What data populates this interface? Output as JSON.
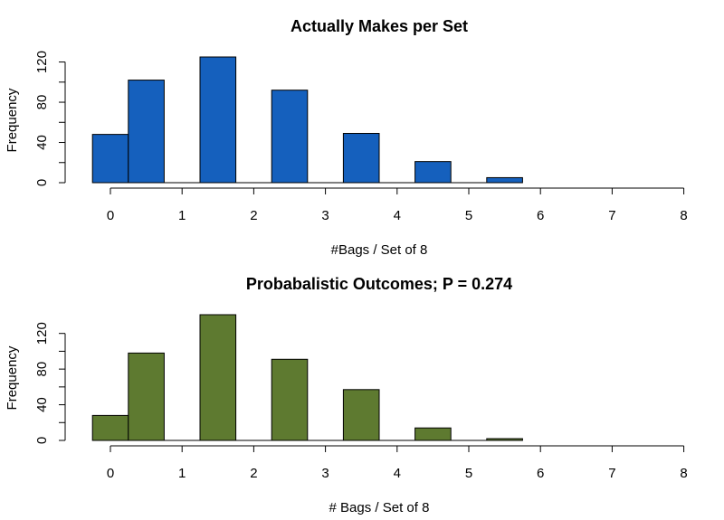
{
  "chart_data": [
    {
      "type": "bar",
      "title": "Actually Makes per Set",
      "xlabel": "#Bags / Set of 8",
      "ylabel": "Frequency",
      "bar_color": "#1560BD",
      "bar_lefts": [
        -0.25,
        0.25,
        1.25,
        2.25,
        3.25,
        4.25,
        5.25
      ],
      "bar_rights": [
        0.25,
        0.75,
        1.75,
        2.75,
        3.75,
        4.75,
        5.75
      ],
      "values": [
        48,
        102,
        125,
        92,
        49,
        21,
        5
      ],
      "xticks": [
        0,
        1,
        2,
        3,
        4,
        5,
        6,
        7,
        8
      ],
      "xlim": [
        -0.25,
        8
      ],
      "yticks": [
        0,
        40,
        80,
        120
      ],
      "ylim": [
        0,
        125
      ],
      "grid": false
    },
    {
      "type": "bar",
      "title": "Probabalistic Outcomes; P = 0.274",
      "xlabel": "# Bags / Set of 8",
      "ylabel": "Frequency",
      "bar_color": "#5E7A30",
      "bar_lefts": [
        -0.25,
        0.25,
        1.25,
        2.25,
        3.25,
        4.25,
        5.25
      ],
      "bar_rights": [
        0.25,
        0.75,
        1.75,
        2.75,
        3.75,
        4.75,
        5.75
      ],
      "values": [
        28,
        98,
        141,
        91,
        57,
        14,
        2
      ],
      "xticks": [
        0,
        1,
        2,
        3,
        4,
        5,
        6,
        7,
        8
      ],
      "xlim": [
        -0.25,
        8
      ],
      "yticks": [
        0,
        40,
        80,
        120
      ],
      "ylim": [
        0,
        141
      ],
      "grid": false
    }
  ]
}
